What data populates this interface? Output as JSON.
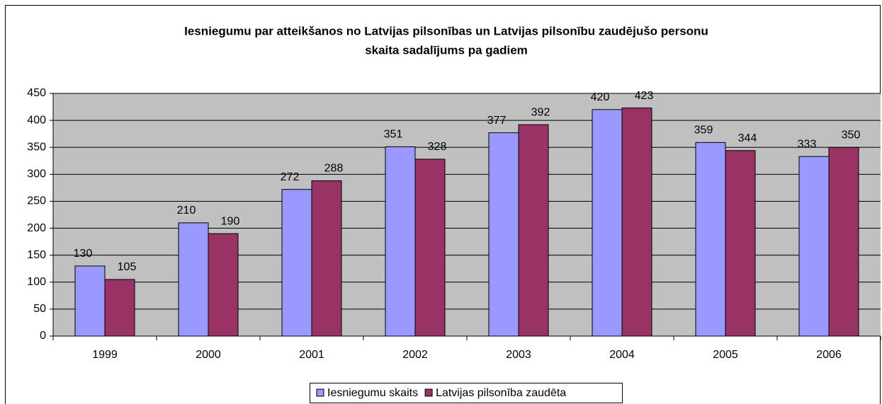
{
  "chart_data": {
    "type": "bar",
    "title": [
      "Iesniegumu par atteikšanos no Latvijas pilsonības un Latvijas pilsonību zaudējušo personu",
      "skaita sadalījums pa gadiem"
    ],
    "categories": [
      "1999",
      "2000",
      "2001",
      "2002",
      "2003",
      "2004",
      "2005",
      "2006"
    ],
    "series": [
      {
        "name": "Iesniegumu skaits",
        "color": "#9999ff",
        "values": [
          130,
          210,
          272,
          351,
          377,
          420,
          359,
          333
        ]
      },
      {
        "name": "Latvijas pilsonība zaudēta",
        "color": "#993366",
        "values": [
          105,
          190,
          288,
          328,
          392,
          423,
          344,
          350
        ]
      }
    ],
    "ylim": [
      0,
      450
    ],
    "yticks": [
      0,
      50,
      100,
      150,
      200,
      250,
      300,
      350,
      400,
      450
    ],
    "grid": true,
    "legend": "bottom"
  }
}
